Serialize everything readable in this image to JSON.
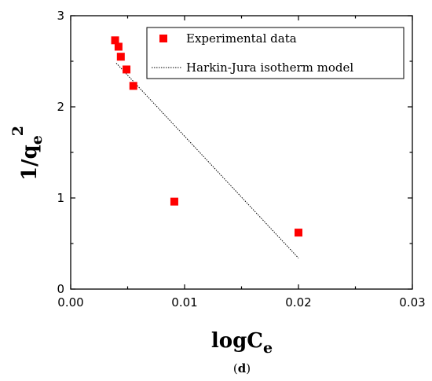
{
  "chart_data": {
    "type": "scatter",
    "title": "",
    "xlabel_main": "logC",
    "xlabel_sub": "e",
    "ylabel_main": "1/q",
    "ylabel_sub": "e",
    "ylabel_sup": "2",
    "xlim": [
      0.0,
      0.03
    ],
    "ylim": [
      0,
      3
    ],
    "x_ticks": [
      0.0,
      0.01,
      0.02,
      0.03
    ],
    "x_tick_labels": [
      "0.00",
      "0.01",
      "0.02",
      "0.03"
    ],
    "y_ticks": [
      0,
      1,
      2,
      3
    ],
    "y_tick_labels": [
      "0",
      "1",
      "2",
      "3"
    ],
    "grid": false,
    "legend_position": "top-right",
    "series": [
      {
        "name": "Experimental data",
        "kind": "scatter",
        "marker": "square",
        "color": "#ff0000",
        "x": [
          0.0039,
          0.0042,
          0.0044,
          0.0049,
          0.0055,
          0.0091,
          0.02
        ],
        "y": [
          2.73,
          2.66,
          2.55,
          2.41,
          2.23,
          0.96,
          0.62
        ]
      },
      {
        "name": "Harkin-Jura isotherm model",
        "kind": "line",
        "style": "dotted",
        "color": "#000000",
        "x": [
          0.004,
          0.02
        ],
        "y": [
          2.48,
          0.34
        ]
      }
    ],
    "caption_open": "(",
    "caption_letter": "d",
    "caption_close": ")"
  }
}
